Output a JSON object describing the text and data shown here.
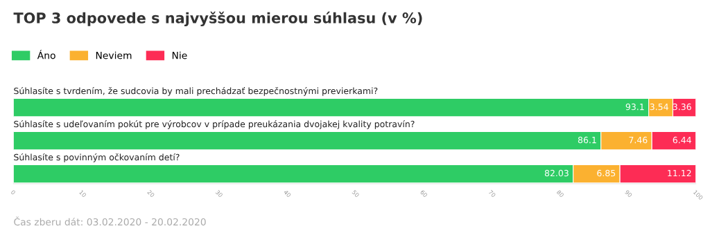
{
  "chart_data": {
    "type": "bar",
    "orientation": "horizontal",
    "stacked": true,
    "title": "TOP 3 odpovede s najvyššou mierou súhlasu (v %)",
    "categories": [
      "Súhlasíte s tvrdením, že sudcovia by mali prechádzať bezpečnostnými previerkami?",
      "Súhlasíte s udeľovaním pokút pre výrobcov v prípade preukázania dvojakej kvality potravín?",
      "Súhlasíte s povinným očkovaním detí?"
    ],
    "series": [
      {
        "name": "Áno",
        "color": "#2ecc65",
        "values": [
          93.1,
          86.1,
          82.03
        ]
      },
      {
        "name": "Neviem",
        "color": "#fbb130",
        "values": [
          3.54,
          7.46,
          6.85
        ]
      },
      {
        "name": "Nie",
        "color": "#fd2c55",
        "values": [
          3.36,
          6.44,
          11.12
        ]
      }
    ],
    "xlim": [
      0,
      100
    ],
    "xticks": [
      0,
      10,
      20,
      30,
      40,
      50,
      60,
      70,
      80,
      90,
      100
    ],
    "data_labels": true,
    "legend": "top left",
    "grid": false,
    "annotations": [
      "Čas zberu dát: 03.02.2020 - 20.02.2020"
    ]
  }
}
